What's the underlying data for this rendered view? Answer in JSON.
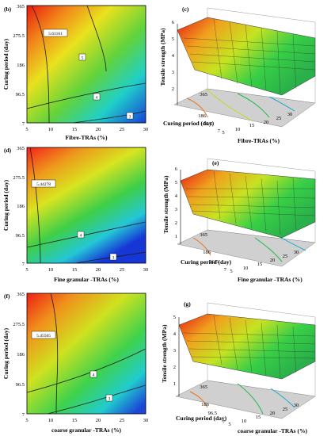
{
  "contour_panels": [
    {
      "tag": "(b)",
      "ylabel": "Curing period (day)",
      "xlabel": "Fibre-TRAs (%)",
      "xticks": [
        "5",
        "10",
        "15",
        "20",
        "25",
        "30"
      ],
      "yticks": [
        "365",
        "275.5",
        "186",
        "96.5",
        "7"
      ],
      "contours": [
        "5.61161",
        "5",
        "4",
        "3"
      ],
      "xlim": [
        5,
        30
      ],
      "ylim": [
        7,
        365
      ]
    },
    {
      "tag": "(d)",
      "ylabel": "Curing period (day)",
      "xlabel": "Fine granular -TRAs (%)",
      "xticks": [
        "5",
        "10",
        "15",
        "20",
        "25",
        "30"
      ],
      "yticks": [
        "365",
        "275.5",
        "186",
        "96.5",
        "7"
      ],
      "contours": [
        "5.44278",
        "4",
        "3"
      ],
      "xlim": [
        5,
        30
      ],
      "ylim": [
        7,
        365
      ]
    },
    {
      "tag": "(f)",
      "ylabel": "Curing period (day)",
      "xlabel": "coarse granular -TRAs (%)",
      "xticks": [
        "5",
        "10",
        "15",
        "20",
        "25",
        "30"
      ],
      "yticks": [
        "365",
        "275.5",
        "186",
        "96.5",
        "7"
      ],
      "contours": [
        "5.45505",
        "4",
        "3"
      ],
      "xlim": [
        5,
        30
      ],
      "ylim": [
        7,
        365
      ]
    }
  ],
  "surface_panels": [
    {
      "tag": "(c)",
      "zlabel": "Tensile strength (MPa)",
      "xlabel": "Fibre-TRAs (%)",
      "ylabel": "Curing period (day)",
      "zticks": [
        "2",
        "3",
        "4",
        "5",
        "6"
      ],
      "xticks": [
        "5",
        "10",
        "15",
        "20",
        "25",
        "30"
      ],
      "yticks": [
        "365",
        "186",
        "96.5",
        "7"
      ]
    },
    {
      "tag": "(e)",
      "zlabel": "Tensile strength (MPa)",
      "xlabel": "Fine granular -TRAs (%)",
      "ylabel": "Curing period (day)",
      "zticks": [
        "1",
        "2",
        "3",
        "4",
        "5",
        "6"
      ],
      "xticks": [
        "5",
        "10",
        "15",
        "20",
        "25",
        "30"
      ],
      "yticks": [
        "365",
        "186",
        "96.5",
        "7"
      ]
    },
    {
      "tag": "(g)",
      "zlabel": "Tensile strength (MPa)",
      "xlabel": "coarse granular -TRAs (%)",
      "ylabel": "Curing period (day)",
      "zticks": [
        "1",
        "2",
        "3",
        "4",
        "5"
      ],
      "xticks": [
        "5",
        "10",
        "15",
        "20",
        "25",
        "30"
      ],
      "yticks": [
        "365",
        "186",
        "96.5",
        "7"
      ]
    }
  ],
  "chart_data": [
    {
      "type": "heatmap",
      "title": "(b)",
      "xlabel": "Fibre-TRAs (%)",
      "ylabel": "Curing period (day)",
      "xlim": [
        5,
        30
      ],
      "ylim": [
        7,
        365
      ],
      "contour_levels": [
        5.61161,
        5,
        4,
        3
      ],
      "grid": false
    },
    {
      "type": "heatmap",
      "title": "(c)",
      "xlabel": "Fibre-TRAs (%)",
      "ylabel": "Curing period (day)",
      "zlabel": "Tensile strength (MPa)",
      "zlim": [
        2,
        6
      ],
      "grid": true
    },
    {
      "type": "heatmap",
      "title": "(d)",
      "xlabel": "Fine granular -TRAs (%)",
      "ylabel": "Curing period (day)",
      "xlim": [
        5,
        30
      ],
      "ylim": [
        7,
        365
      ],
      "contour_levels": [
        5.44278,
        4,
        3
      ],
      "grid": false
    },
    {
      "type": "heatmap",
      "title": "(e)",
      "xlabel": "Fine granular -TRAs (%)",
      "ylabel": "Curing period (day)",
      "zlabel": "Tensile strength (MPa)",
      "zlim": [
        1,
        6
      ],
      "grid": true
    },
    {
      "type": "heatmap",
      "title": "(f)",
      "xlabel": "coarse granular -TRAs (%)",
      "ylabel": "Curing period (day)",
      "xlim": [
        5,
        30
      ],
      "ylim": [
        7,
        365
      ],
      "contour_levels": [
        5.45505,
        4,
        3
      ],
      "grid": false
    },
    {
      "type": "heatmap",
      "title": "(g)",
      "xlabel": "coarse granular -TRAs (%)",
      "ylabel": "Curing period (day)",
      "zlabel": "Tensile strength (MPa)",
      "zlim": [
        1,
        5
      ],
      "grid": true
    }
  ]
}
